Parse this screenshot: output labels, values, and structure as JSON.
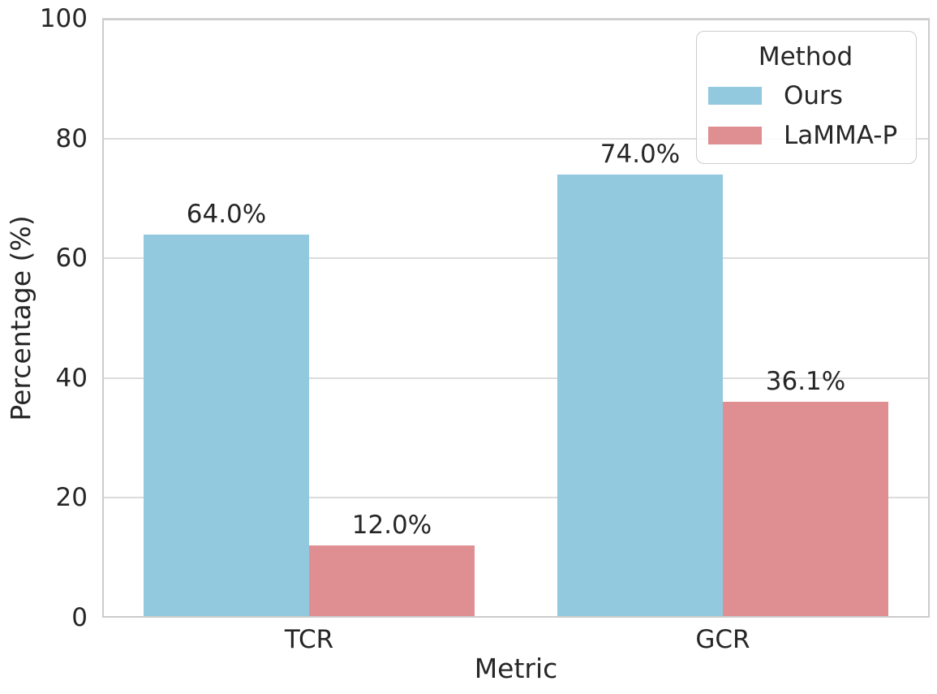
{
  "chart_data": {
    "type": "bar",
    "categories": [
      "TCR",
      "GCR"
    ],
    "series": [
      {
        "name": "Ours",
        "color": "#92C9DF",
        "values": [
          64.0,
          74.0
        ],
        "labels": [
          "64.0%",
          "74.0%"
        ]
      },
      {
        "name": "LaMMA-P",
        "color": "#DF8E92",
        "values": [
          12.0,
          36.1
        ],
        "labels": [
          "12.0%",
          "36.1%"
        ]
      }
    ],
    "xlabel": "Metric",
    "ylabel": "Percentage (%)",
    "ylim": [
      0,
      100
    ],
    "yticks": [
      0,
      20,
      40,
      60,
      80,
      100
    ],
    "legend_title": "Method",
    "legend_position": "upper right",
    "grid": true
  }
}
